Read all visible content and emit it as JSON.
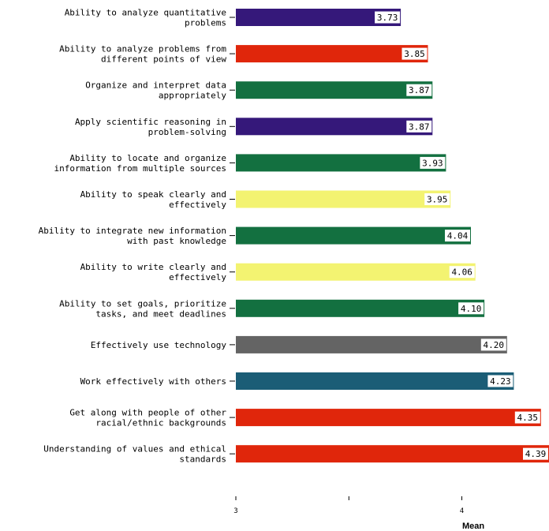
{
  "chart_data": {
    "type": "bar",
    "orientation": "horizontal",
    "title": "",
    "xlabel": "Mean",
    "ylabel": "",
    "xlim": [
      3,
      4.39
    ],
    "xticks": [
      3,
      3.5,
      4
    ],
    "xtick_labels": [
      "3",
      "",
      "4"
    ],
    "grid": false,
    "legend": "none",
    "categories": [
      [
        "Ability to analyze quantitative",
        "problems"
      ],
      [
        "Ability to analyze problems from",
        "different points of view"
      ],
      [
        "Organize and interpret data",
        "appropriately"
      ],
      [
        "Apply scientific reasoning in",
        "problem-solving"
      ],
      [
        "Ability to locate and organize",
        "information from multiple sources"
      ],
      [
        "Ability to speak clearly and",
        "effectively"
      ],
      [
        "Ability to integrate new information",
        "with past knowledge"
      ],
      [
        "Ability to write clearly and",
        "effectively"
      ],
      [
        "Ability to set goals, prioritize",
        "tasks, and meet deadlines"
      ],
      [
        "Effectively use technology"
      ],
      [
        "Work effectively with others"
      ],
      [
        "Get along with people of other",
        "racial/ethnic backgrounds"
      ],
      [
        "Understanding of values and ethical",
        "standards"
      ]
    ],
    "values": [
      3.73,
      3.85,
      3.87,
      3.87,
      3.93,
      3.95,
      4.04,
      4.06,
      4.1,
      4.2,
      4.23,
      4.35,
      4.39
    ],
    "value_labels": [
      "3.73",
      "3.85",
      "3.87",
      "3.87",
      "3.93",
      "3.95",
      "4.04",
      "4.06",
      "4.10",
      "4.20",
      "4.23",
      "4.35",
      "4.39"
    ],
    "colors": [
      "#35187a",
      "#e0260b",
      "#137040",
      "#35187a",
      "#137040",
      "#f3f371",
      "#137040",
      "#f3f371",
      "#137040",
      "#646464",
      "#1b5d76",
      "#e0260b",
      "#e0260b"
    ]
  }
}
